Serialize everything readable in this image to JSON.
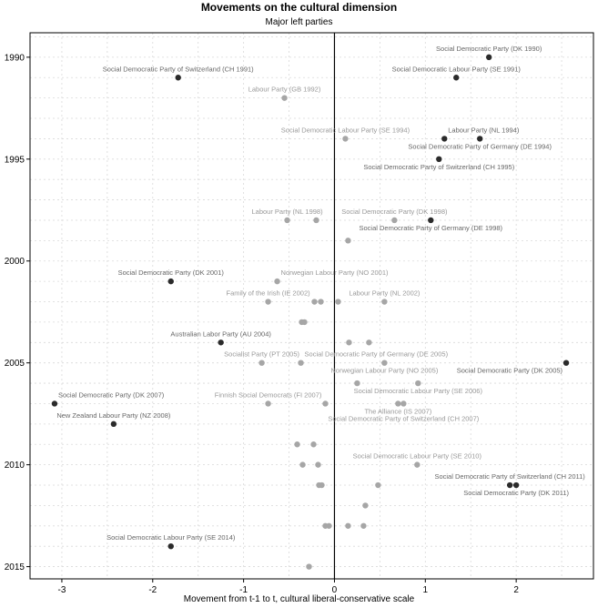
{
  "chart_data": {
    "type": "scatter",
    "title": "Movements on the cultural dimension",
    "subtitle": "Major left parties",
    "xlabel": "Movement from t-1 to t, cultural liberal-conservative scale",
    "ylabel": "",
    "xlim": [
      -3.35,
      2.85
    ],
    "ylim": [
      2015.6,
      1988.8
    ],
    "x_ticks": [
      -3,
      -2,
      -1,
      0,
      1,
      2
    ],
    "x_tick_labels": [
      "-3",
      "-2",
      "-1",
      "0",
      "1",
      "2"
    ],
    "y_ticks": [
      1990,
      1995,
      2000,
      2005,
      2010,
      2015
    ],
    "y_tick_labels": [
      "1990",
      "1995",
      "2000",
      "2005",
      "2010",
      "2015"
    ],
    "grid": true,
    "reference_line_x": 0,
    "colors": {
      "dark": "#2b2b2b",
      "mid": "#a6a6a6",
      "dark_label": "#666666",
      "mid_label": "#999999",
      "grid": "#d9d9d9"
    },
    "points": [
      {
        "x": 1.7,
        "y": 1990.0,
        "label": "Social Democratic Party (DK 1990)",
        "tone": "dark"
      },
      {
        "x": -1.72,
        "y": 1991.0,
        "label": "Social Democratic Party of Switzerland (CH 1991)",
        "tone": "dark"
      },
      {
        "x": 1.34,
        "y": 1991.0,
        "label": "Social Democratic Labour Party (SE 1991)",
        "tone": "dark"
      },
      {
        "x": -0.55,
        "y": 1992.0,
        "label": "Labour Party (GB 1992)",
        "tone": "mid"
      },
      {
        "x": 0.12,
        "y": 1994.0,
        "label": "Social Democratic Labour Party (SE 1994)",
        "tone": "mid"
      },
      {
        "x": 1.6,
        "y": 1994.0,
        "label": "Social Democratic Party of Germany (DE 1994)",
        "tone": "dark"
      },
      {
        "x": 1.21,
        "y": 1994.0,
        "label": "Labour Party (NL 1994)",
        "tone": "dark"
      },
      {
        "x": 1.15,
        "y": 1995.0,
        "label": "Social Democratic Party of Switzerland (CH 1995)",
        "tone": "dark"
      },
      {
        "x": -0.52,
        "y": 1998.0,
        "label": "Labour Party (NL 1998)",
        "tone": "mid"
      },
      {
        "x": -0.2,
        "y": 1998.0,
        "label": "",
        "tone": "mid"
      },
      {
        "x": 0.66,
        "y": 1998.0,
        "label": "Social Democratic Party (DK 1998)",
        "tone": "mid"
      },
      {
        "x": 1.06,
        "y": 1998.0,
        "label": "Social Democratic Party of Germany (DE 1998)",
        "tone": "dark"
      },
      {
        "x": 0.15,
        "y": 1999.0,
        "label": "",
        "tone": "mid"
      },
      {
        "x": -1.8,
        "y": 2001.0,
        "label": "Social Democratic Party (DK 2001)",
        "tone": "dark"
      },
      {
        "x": -0.63,
        "y": 2001.0,
        "label": "Norwegian Labour Party (NO 2001)",
        "tone": "mid"
      },
      {
        "x": -0.73,
        "y": 2002.0,
        "label": "Family of the Irish (IE 2002)",
        "tone": "mid"
      },
      {
        "x": -0.22,
        "y": 2002.0,
        "label": "",
        "tone": "mid"
      },
      {
        "x": -0.15,
        "y": 2002.0,
        "label": "",
        "tone": "mid"
      },
      {
        "x": 0.04,
        "y": 2002.0,
        "label": "",
        "tone": "mid"
      },
      {
        "x": 0.55,
        "y": 2002.0,
        "label": "Labour Party (NL 2002)",
        "tone": "mid"
      },
      {
        "x": -0.36,
        "y": 2003.0,
        "label": "",
        "tone": "mid"
      },
      {
        "x": -0.33,
        "y": 2003.0,
        "label": "",
        "tone": "mid"
      },
      {
        "x": -1.25,
        "y": 2004.0,
        "label": "Australian Labor Party (AU 2004)",
        "tone": "dark"
      },
      {
        "x": 0.16,
        "y": 2004.0,
        "label": "",
        "tone": "mid"
      },
      {
        "x": 0.38,
        "y": 2004.0,
        "label": "",
        "tone": "mid"
      },
      {
        "x": -0.8,
        "y": 2005.0,
        "label": "Socialist Party (PT 2005)",
        "tone": "mid"
      },
      {
        "x": -0.37,
        "y": 2005.0,
        "label": "Social Democratic Party of Germany (DE 2005)",
        "tone": "mid"
      },
      {
        "x": 0.55,
        "y": 2005.0,
        "label": "Norwegian Labour Party (NO 2005)",
        "tone": "mid"
      },
      {
        "x": 2.55,
        "y": 2005.0,
        "label": "Social Democratic Party (DK 2005)",
        "tone": "dark"
      },
      {
        "x": 0.25,
        "y": 2006.0,
        "label": "",
        "tone": "mid"
      },
      {
        "x": 0.92,
        "y": 2006.0,
        "label": "Social Democratic Labour Party (SE 2006)",
        "tone": "mid"
      },
      {
        "x": -3.08,
        "y": 2007.0,
        "label": "Social Democratic Party (DK 2007)",
        "tone": "dark"
      },
      {
        "x": -0.73,
        "y": 2007.0,
        "label": "Finnish Social Democrats (FI 2007)",
        "tone": "mid"
      },
      {
        "x": -0.1,
        "y": 2007.0,
        "label": "",
        "tone": "mid"
      },
      {
        "x": 0.7,
        "y": 2007.0,
        "label": "The Alliance (IS 2007)",
        "tone": "mid"
      },
      {
        "x": 0.76,
        "y": 2007.0,
        "label": "Social Democratic Party of Switzerland (CH 2007)",
        "tone": "mid"
      },
      {
        "x": -2.43,
        "y": 2008.0,
        "label": "New Zealand Labour Party (NZ 2008)",
        "tone": "dark"
      },
      {
        "x": -0.41,
        "y": 2009.0,
        "label": "",
        "tone": "mid"
      },
      {
        "x": -0.23,
        "y": 2009.0,
        "label": "",
        "tone": "mid"
      },
      {
        "x": -0.35,
        "y": 2010.0,
        "label": "",
        "tone": "mid"
      },
      {
        "x": -0.18,
        "y": 2010.0,
        "label": "",
        "tone": "mid"
      },
      {
        "x": 0.91,
        "y": 2010.0,
        "label": "Social Democratic Labour Party (SE 2010)",
        "tone": "mid"
      },
      {
        "x": -0.17,
        "y": 2011.0,
        "label": "",
        "tone": "mid"
      },
      {
        "x": -0.14,
        "y": 2011.0,
        "label": "",
        "tone": "mid"
      },
      {
        "x": 0.48,
        "y": 2011.0,
        "label": "",
        "tone": "mid"
      },
      {
        "x": 1.93,
        "y": 2011.0,
        "label": "Social Democratic Party of Switzerland (CH 2011)",
        "tone": "dark"
      },
      {
        "x": 2.0,
        "y": 2011.0,
        "label": "Social Democratic Party (DK 2011)",
        "tone": "dark"
      },
      {
        "x": 0.34,
        "y": 2012.0,
        "label": "",
        "tone": "mid"
      },
      {
        "x": -0.1,
        "y": 2013.0,
        "label": "",
        "tone": "mid"
      },
      {
        "x": -0.06,
        "y": 2013.0,
        "label": "",
        "tone": "mid"
      },
      {
        "x": 0.15,
        "y": 2013.0,
        "label": "",
        "tone": "mid"
      },
      {
        "x": 0.32,
        "y": 2013.0,
        "label": "",
        "tone": "mid"
      },
      {
        "x": -1.8,
        "y": 2014.0,
        "label": "Social Democratic Labour Party (SE 2014)",
        "tone": "dark"
      },
      {
        "x": -0.28,
        "y": 2015.0,
        "label": "",
        "tone": "mid"
      }
    ]
  }
}
